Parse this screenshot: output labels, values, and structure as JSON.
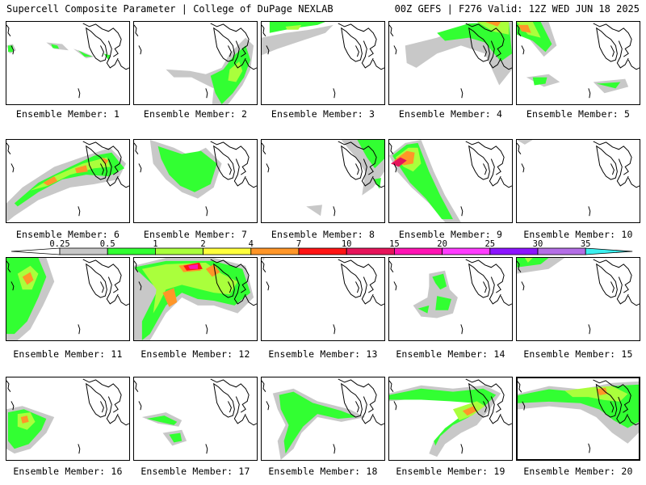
{
  "header": {
    "left_title": "Supercell Composite Parameter | College of DuPage NEXLAB",
    "right_title": "00Z GEFS | F276 Valid: 12Z WED JUN 18 2025"
  },
  "legend": {
    "levels": [
      "0.25",
      "0.5",
      "1",
      "2",
      "4",
      "7",
      "10",
      "15",
      "20",
      "25",
      "30",
      "35"
    ],
    "colors": [
      "#c8c8c8",
      "#32ff32",
      "#aaff3c",
      "#ffff3c",
      "#ff9628",
      "#ff1414",
      "#e6145a",
      "#ff14b4",
      "#ff3cff",
      "#8c14ff",
      "#b46ee6",
      "#3cf0f0"
    ]
  },
  "panel_label_prefix": "Ensemble Member: ",
  "members": [
    {
      "id": "1",
      "label": "Ensemble Member: 1"
    },
    {
      "id": "2",
      "label": "Ensemble Member: 2"
    },
    {
      "id": "3",
      "label": "Ensemble Member: 3"
    },
    {
      "id": "4",
      "label": "Ensemble Member: 4"
    },
    {
      "id": "5",
      "label": "Ensemble Member: 5"
    },
    {
      "id": "6",
      "label": "Ensemble Member: 6"
    },
    {
      "id": "7",
      "label": "Ensemble Member: 7"
    },
    {
      "id": "8",
      "label": "Ensemble Member: 8"
    },
    {
      "id": "9",
      "label": "Ensemble Member: 9"
    },
    {
      "id": "10",
      "label": "Ensemble Member: 10"
    },
    {
      "id": "11",
      "label": "Ensemble Member: 11"
    },
    {
      "id": "12",
      "label": "Ensemble Member: 12"
    },
    {
      "id": "13",
      "label": "Ensemble Member: 13"
    },
    {
      "id": "14",
      "label": "Ensemble Member: 14"
    },
    {
      "id": "15",
      "label": "Ensemble Member: 15"
    },
    {
      "id": "16",
      "label": "Ensemble Member: 16"
    },
    {
      "id": "17",
      "label": "Ensemble Member: 17"
    },
    {
      "id": "18",
      "label": "Ensemble Member: 18"
    },
    {
      "id": "19",
      "label": "Ensemble Member: 19"
    },
    {
      "id": "20",
      "label": "Ensemble Member: 20",
      "selected": true
    }
  ]
}
